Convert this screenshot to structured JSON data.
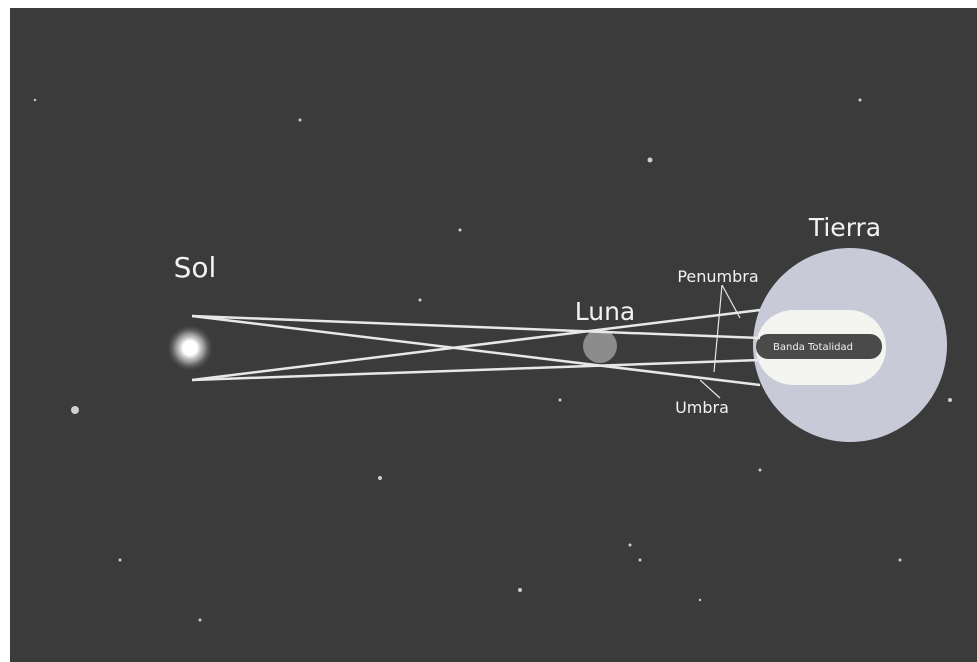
{
  "labels": {
    "sun": "Sol",
    "moon": "Luna",
    "earth": "Tierra",
    "penumbra": "Penumbra",
    "umbra": "Umbra",
    "band": "Banda Totalidad"
  }
}
